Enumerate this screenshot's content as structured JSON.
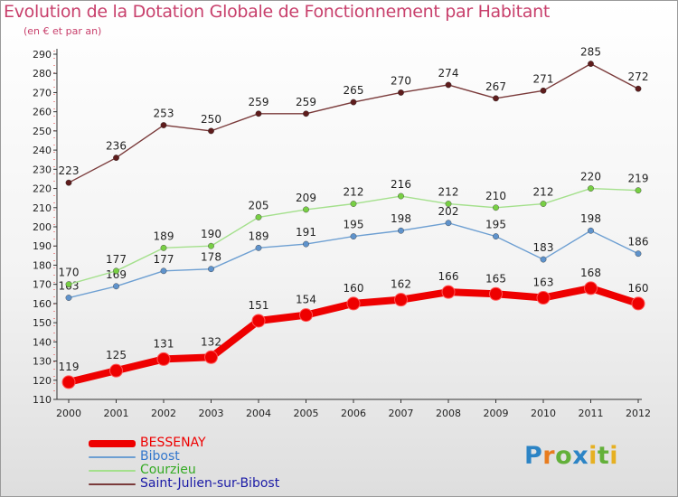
{
  "title": "Evolution de la Dotation Globale de Fonctionnement par Habitant",
  "subtitle": "(en € et par an)",
  "logo": {
    "p": "P",
    "r": "r",
    "o": "o",
    "x": "x",
    "i1": "i",
    "t": "t",
    "i2": "i"
  },
  "chart_data": {
    "type": "line",
    "title": "Evolution de la Dotation Globale de Fonctionnement par Habitant",
    "subtitle": "(en € et par an)",
    "xlabel": "",
    "ylabel": "",
    "ylim": [
      110,
      290
    ],
    "ytick_step": 10,
    "grid": false,
    "legend_position": "bottom-left",
    "categories": [
      "2000",
      "2001",
      "2002",
      "2003",
      "2004",
      "2005",
      "2006",
      "2007",
      "2008",
      "2009",
      "2010",
      "2011",
      "2012"
    ],
    "series": [
      {
        "name": "BESSENAY",
        "color": "#ee0000",
        "line_color": "#ee0000",
        "marker_color": "#ee0000",
        "emphasis": true,
        "values": [
          119,
          125,
          131,
          132,
          151,
          154,
          160,
          162,
          166,
          165,
          163,
          168,
          160
        ]
      },
      {
        "name": "Bibost",
        "color": "#3377cc",
        "line_color": "#6d9fd2",
        "marker_color": "#5f93cc",
        "emphasis": false,
        "values": [
          163,
          169,
          177,
          178,
          189,
          191,
          195,
          198,
          202,
          195,
          183,
          198,
          186
        ]
      },
      {
        "name": "Courzieu",
        "color": "#33aa22",
        "line_color": "#a4e08c",
        "marker_color": "#78cf44",
        "emphasis": false,
        "values": [
          170,
          177,
          189,
          190,
          205,
          209,
          212,
          216,
          212,
          210,
          212,
          220,
          219
        ]
      },
      {
        "name": "Saint-Julien-sur-Bibost",
        "color": "#1a1aa6",
        "line_color": "#7a3a3a",
        "marker_color": "#5e1c1c",
        "emphasis": false,
        "values": [
          223,
          236,
          253,
          250,
          259,
          259,
          265,
          270,
          274,
          267,
          271,
          285,
          272
        ]
      }
    ]
  }
}
